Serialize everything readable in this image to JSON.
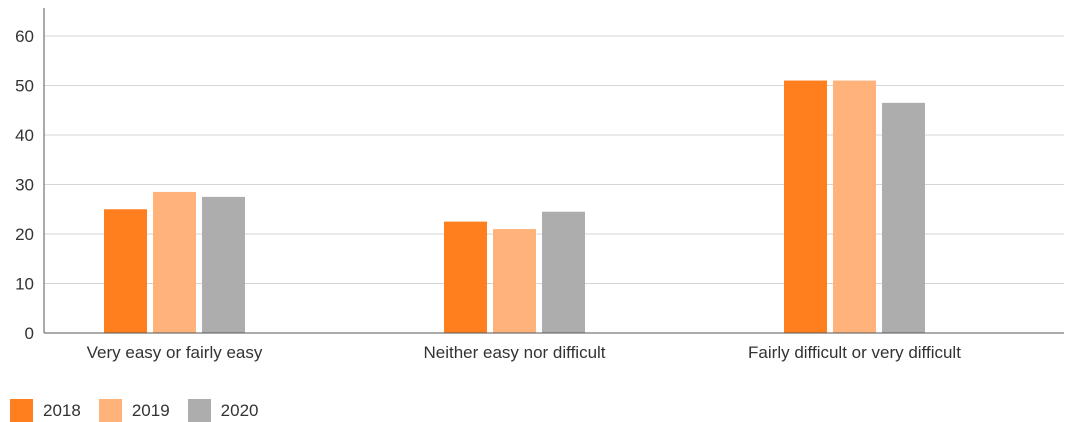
{
  "chart_data": {
    "type": "bar",
    "title": "",
    "xlabel": "",
    "ylabel": "",
    "categories": [
      "Very easy or fairly easy",
      "Neither easy nor difficult",
      "Fairly difficult or very difficult"
    ],
    "series": [
      {
        "name": "2018",
        "color": "#FF7F1E",
        "values": [
          25,
          22.5,
          51
        ]
      },
      {
        "name": "2019",
        "color": "#FFB27A",
        "values": [
          28.5,
          21,
          51
        ]
      },
      {
        "name": "2020",
        "color": "#ADADAD",
        "values": [
          27.5,
          24.5,
          46.5
        ]
      }
    ],
    "ylim": [
      0,
      60
    ],
    "yticks": [
      0,
      10,
      20,
      30,
      40,
      50,
      60
    ],
    "grid": true,
    "legend_position": "bottom-left"
  }
}
